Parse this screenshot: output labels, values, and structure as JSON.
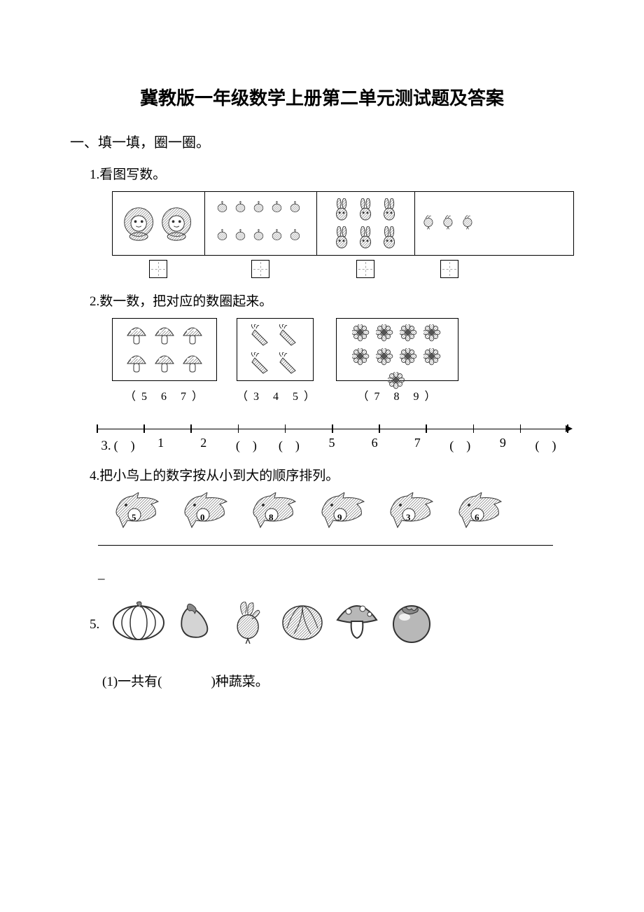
{
  "title": "冀教版一年级数学上册第二单元测试题及答案",
  "section1": {
    "header": "一、填一填，圈一圈。",
    "q1": {
      "label": "1.看图写数。",
      "cells": [
        {
          "icon": "lion",
          "count": 2,
          "size": 52
        },
        {
          "icon": "onion-bulb",
          "count": 10,
          "size": 24
        },
        {
          "icon": "rabbit",
          "count": 6,
          "size": 32
        },
        {
          "icon": "radish-small",
          "count": 3,
          "size": 26
        }
      ]
    },
    "q2": {
      "label": "2.数一数，把对应的数圈起来。",
      "groups": [
        {
          "icon": "mushroom",
          "count": 6,
          "size": 34,
          "options": "（ 5　6　7 ）"
        },
        {
          "icon": "carrot",
          "count": 4,
          "size": 34,
          "options": "（ 3　4　5 ）"
        },
        {
          "icon": "flower",
          "count": 9,
          "size": 28,
          "options": "（ 7　8　9 ）"
        }
      ]
    },
    "q3": {
      "prefix": "3.",
      "labels": [
        "(　)",
        "1",
        "2",
        "(　)",
        "(　)",
        "5",
        "6",
        "7",
        "(　)",
        "9",
        "(　)"
      ]
    },
    "q4": {
      "label": "4.把小鸟上的数字按从小到大的顺序排列。",
      "birds": [
        "5",
        "0",
        "8",
        "9",
        "3",
        "6"
      ],
      "dash": "_"
    },
    "q5": {
      "prefix": "5.",
      "vegs": [
        "pumpkin",
        "eggplant",
        "radish",
        "cabbage",
        "mushroom-big",
        "tomato"
      ],
      "sub1_pre": "(1)一共有(",
      "sub1_post": ")种蔬菜。"
    }
  },
  "colors": {
    "line": "#000000",
    "bg": "#ffffff",
    "pattern": "#5a5a5a",
    "grey_fill": "#b8b8b8",
    "light_grey": "#d4d4d4"
  }
}
